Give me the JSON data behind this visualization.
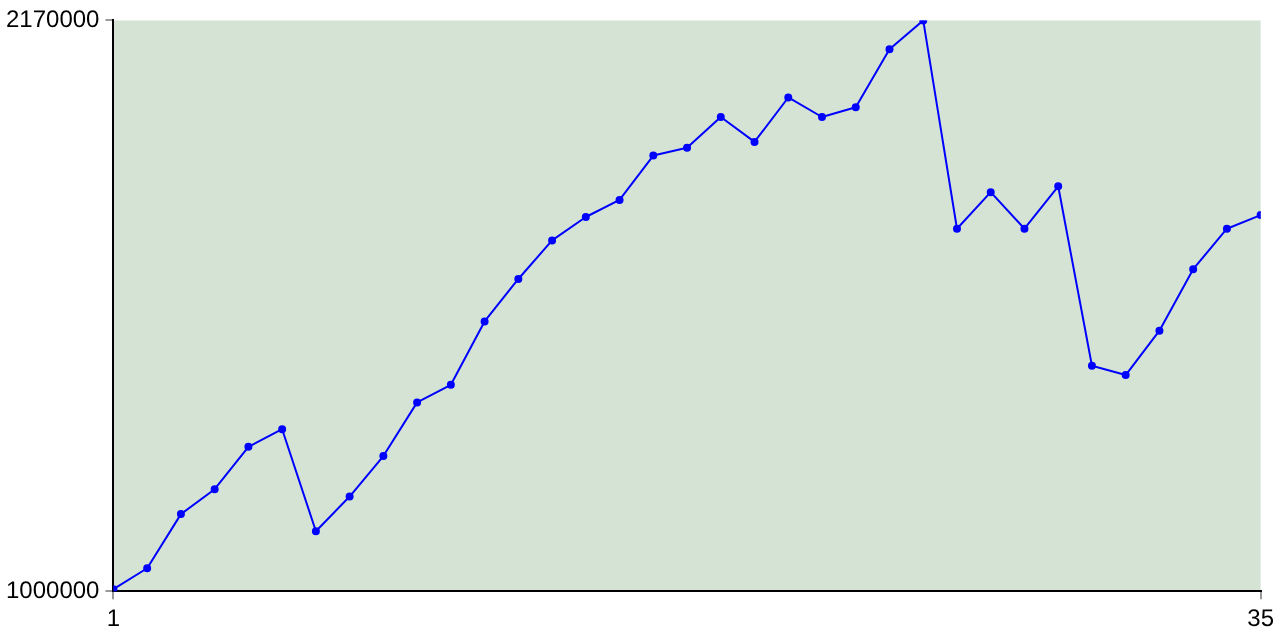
{
  "chart_data": {
    "type": "line",
    "x": [
      1,
      2,
      3,
      4,
      5,
      6,
      7,
      8,
      9,
      10,
      11,
      12,
      13,
      14,
      15,
      16,
      17,
      18,
      19,
      20,
      21,
      22,
      23,
      24,
      25,
      26,
      27,
      28,
      29,
      30,
      31,
      32,
      33,
      34,
      35
    ],
    "series": [
      {
        "color": "#0000ff",
        "values": [
          1004000,
          1047000,
          1158000,
          1209000,
          1296000,
          1332000,
          1123000,
          1194000,
          1277000,
          1387000,
          1423000,
          1553000,
          1640000,
          1719000,
          1767000,
          1802000,
          1893000,
          1909000,
          1972000,
          1921000,
          2012000,
          1972000,
          1992000,
          2111000,
          2170000,
          1743000,
          1818000,
          1743000,
          1830000,
          1462000,
          1443000,
          1534000,
          1660000,
          1743000,
          1771000
        ]
      }
    ],
    "xlim": [
      1,
      35
    ],
    "xticks": [
      1,
      35
    ],
    "ylim": [
      1000000,
      2170000
    ],
    "yticks": [
      1000000,
      2170000
    ],
    "grid": false,
    "legend": false,
    "marker": "circle",
    "line_style": "solid"
  }
}
